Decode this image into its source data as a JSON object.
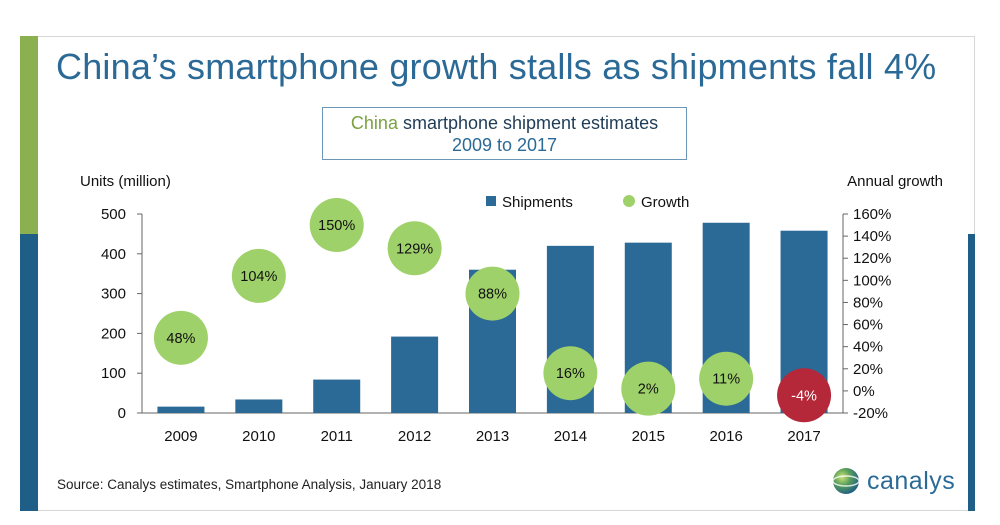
{
  "title": "China’s smartphone growth stalls as shipments fall 4%",
  "subtitle": {
    "accent_word": "China",
    "rest": " smartphone shipment estimates",
    "line2": "2009 to 2017"
  },
  "source": "Source: Canalys estimates, Smartphone Analysis, January 2018",
  "logo": {
    "text": "canalys",
    "icon": "globe-icon"
  },
  "chart_data": {
    "type": "bar",
    "categories": [
      "2009",
      "2010",
      "2011",
      "2012",
      "2013",
      "2014",
      "2015",
      "2016",
      "2017"
    ],
    "series": [
      {
        "name": "Shipments",
        "axis": "left",
        "type": "bar",
        "color": "#2b6a96",
        "values": [
          16,
          34,
          84,
          192,
          360,
          420,
          428,
          478,
          458
        ]
      },
      {
        "name": "Growth",
        "axis": "right",
        "type": "scatter",
        "color": "#9fd16a",
        "negative_color": "#b5283a",
        "values": [
          48,
          104,
          150,
          129,
          88,
          16,
          2,
          11,
          -4
        ],
        "labels": [
          "48%",
          "104%",
          "150%",
          "129%",
          "88%",
          "16%",
          "2%",
          "11%",
          "-4%"
        ]
      }
    ],
    "ylabel": "Units (million)",
    "ylabel_right": "Annual growth",
    "ylim": [
      0,
      500
    ],
    "yticks": [
      "0",
      "100",
      "200",
      "300",
      "400",
      "500"
    ],
    "ylim_right": [
      -20,
      160
    ],
    "yticks_right": [
      "-20%",
      "0%",
      "20%",
      "40%",
      "60%",
      "80%",
      "100%",
      "120%",
      "140%",
      "160%"
    ],
    "legend": [
      "Shipments",
      "Growth"
    ],
    "legend_position": "top",
    "grid": false
  }
}
